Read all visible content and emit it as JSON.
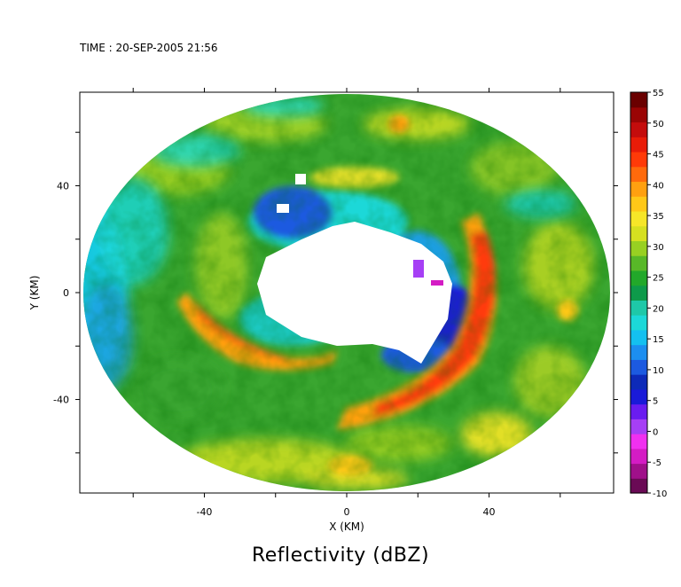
{
  "time_label": "TIME : 20-SEP-2005 21:56",
  "chart_data": {
    "type": "heatmap",
    "title": "Reflectivity (dBZ)",
    "xlabel": "X (KM)",
    "ylabel": "Y (KM)",
    "xlim": [
      -75,
      75
    ],
    "ylim": [
      -75,
      75
    ],
    "x_ticks": [
      -40,
      0,
      40
    ],
    "y_ticks": [
      -40,
      0,
      40
    ],
    "grid": false,
    "colorbar": {
      "min": -10,
      "max": 55,
      "step": 5,
      "labels": [
        "-10",
        "-5",
        "0",
        "5",
        "10",
        "15",
        "20",
        "25",
        "30",
        "35",
        "40",
        "45",
        "50",
        "55"
      ],
      "colors": [
        "#6a0a55",
        "#a0108a",
        "#d41cc4",
        "#f030f0",
        "#a63ff5",
        "#6a1cf0",
        "#1a1ad8",
        "#0d2ab8",
        "#1c5ae0",
        "#1c8ef0",
        "#14c0f0",
        "#1cd8d8",
        "#1ec8a8",
        "#0e9a4a",
        "#22a82a",
        "#58b828",
        "#98d022",
        "#d6e020",
        "#f6e628",
        "#ffc818",
        "#ffa010",
        "#ff6a0c",
        "#ff3a08",
        "#e81c08",
        "#c40c0c",
        "#9a0404",
        "#6a0000"
      ]
    },
    "radar_range_km": 72,
    "features": [
      {
        "type": "eye",
        "center": [
          0,
          5
        ],
        "radii": [
          24,
          15
        ],
        "value": null
      },
      {
        "type": "inner_weak_ring",
        "center": [
          -2,
          4
        ],
        "radii": [
          28,
          20
        ],
        "value": 15
      },
      {
        "type": "eyewall_band",
        "center": [
          8,
          -22
        ],
        "radii": [
          38,
          12
        ],
        "value": 47
      },
      {
        "type": "rainband",
        "center": [
          -26,
          -14
        ],
        "radii": [
          22,
          6
        ],
        "value": 45
      },
      {
        "type": "outer_low_region",
        "center": [
          -66,
          0
        ],
        "radii": [
          14,
          26
        ],
        "value": 22
      }
    ]
  }
}
